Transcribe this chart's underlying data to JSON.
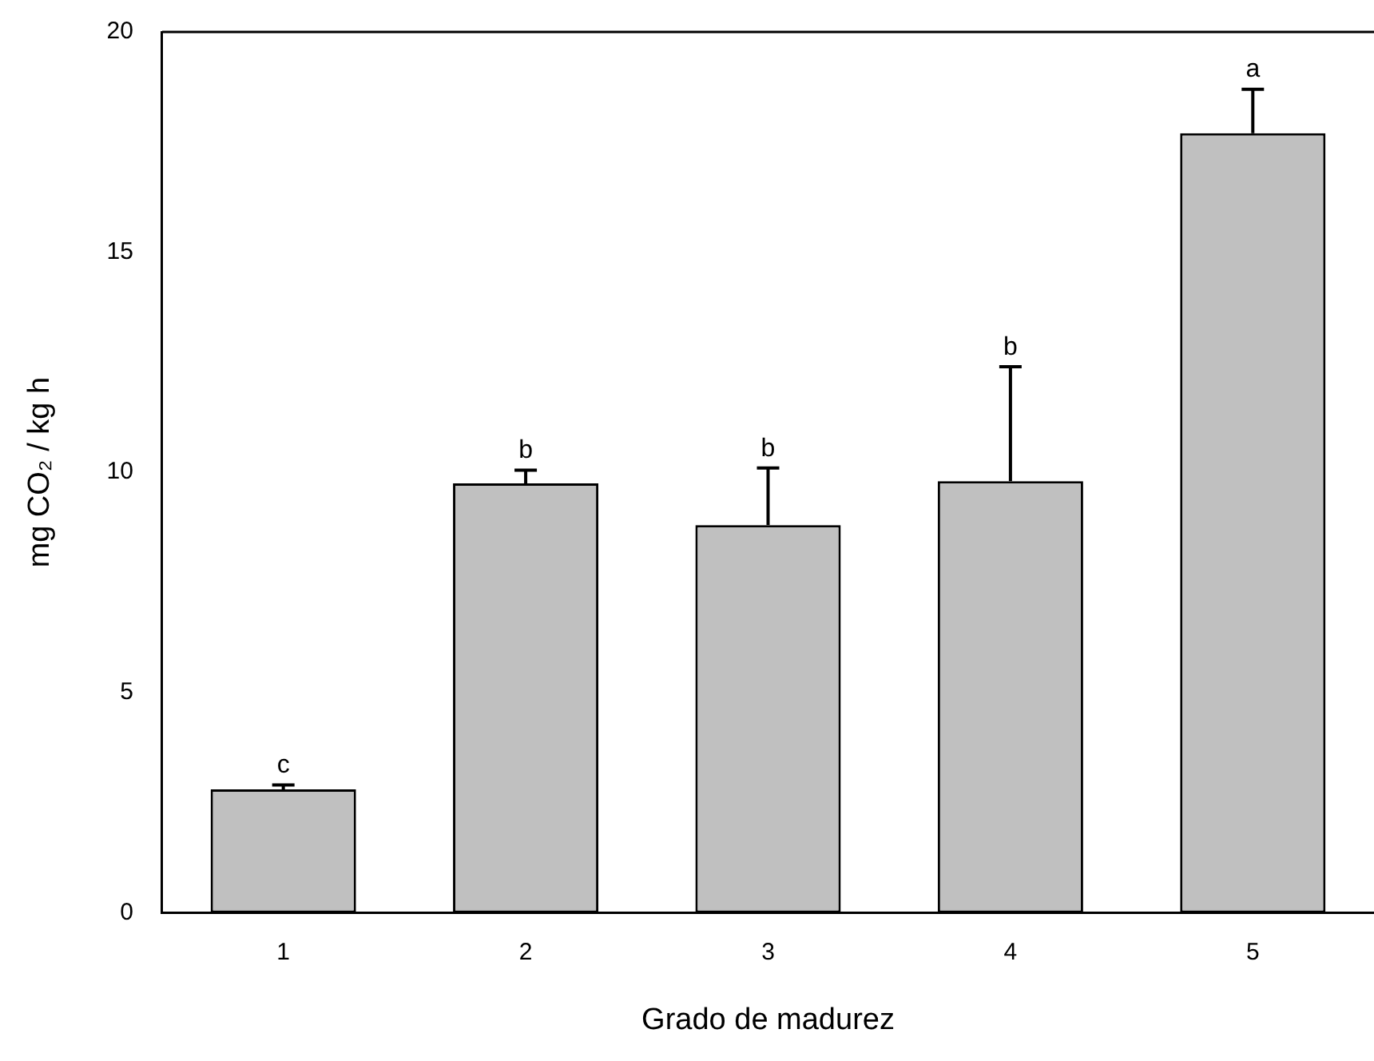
{
  "chart_data": {
    "type": "bar",
    "xlabel": "Grado de madurez",
    "ylabel": "mg CO₂ / kg h",
    "categories": [
      "1",
      "2",
      "3",
      "4",
      "5"
    ],
    "values": [
      2.8,
      9.75,
      8.8,
      9.8,
      17.7
    ],
    "errors": [
      [
        2.8,
        2.9
      ],
      [
        9.75,
        10.05
      ],
      [
        8.8,
        10.1
      ],
      [
        9.8,
        12.4
      ],
      [
        17.7,
        18.7
      ]
    ],
    "color": "#c0c0c0",
    "ylim": [
      0,
      20
    ],
    "yticks": [
      0,
      5,
      10,
      15,
      20
    ],
    "grid": false,
    "legend": false,
    "annotations": [
      "c",
      "b",
      "b",
      "b",
      "a"
    ]
  }
}
